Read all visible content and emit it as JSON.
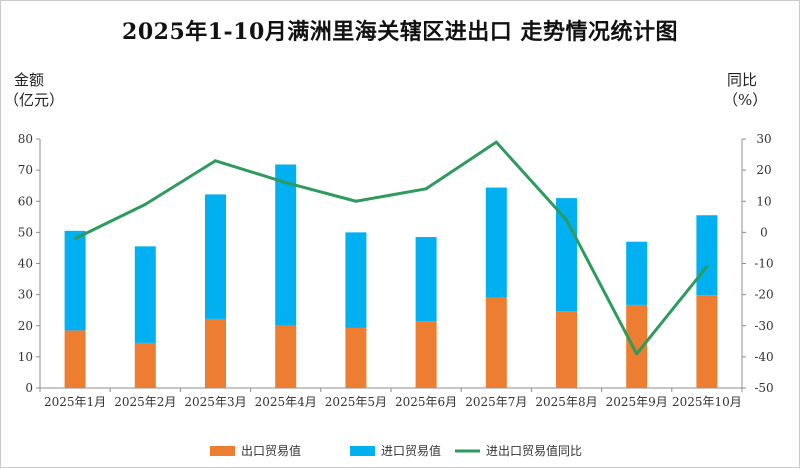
{
  "chart_data": {
    "type": "bar",
    "title": "2025年1-10月满洲里海关辖区进出口 走势情况统计图",
    "left_axis_label": [
      "金额",
      "（亿元）"
    ],
    "right_axis_label": [
      "同比",
      "（%）"
    ],
    "categories": [
      "2025年1月",
      "2025年2月",
      "2025年3月",
      "2025年4月",
      "2025年5月",
      "2025年6月",
      "2025年7月",
      "2025年8月",
      "2025年9月",
      "2025年10月"
    ],
    "series": [
      {
        "name": "出口贸易值",
        "kind": "stacked-bar",
        "axis": "left",
        "color": "#ed7d31",
        "values": [
          18.5,
          14.5,
          22.2,
          20.0,
          19.3,
          21.5,
          29.0,
          24.7,
          26.7,
          29.8
        ]
      },
      {
        "name": "进口贸易值",
        "kind": "stacked-bar",
        "axis": "left",
        "color": "#00b0f0",
        "values": [
          32.0,
          31.0,
          40.0,
          51.8,
          30.7,
          27.0,
          35.4,
          36.3,
          20.3,
          25.7
        ]
      },
      {
        "name": "进出口贸易值同比",
        "kind": "line",
        "axis": "right",
        "color": "#2e9a5e",
        "values": [
          -2,
          9,
          23,
          16,
          10,
          14,
          29,
          4,
          -39,
          -11
        ]
      }
    ],
    "y_left": {
      "min": 0,
      "max": 80,
      "step": 10
    },
    "y_right": {
      "min": -50,
      "max": 30,
      "step": 10
    },
    "grid": false,
    "legend": "bottom"
  }
}
